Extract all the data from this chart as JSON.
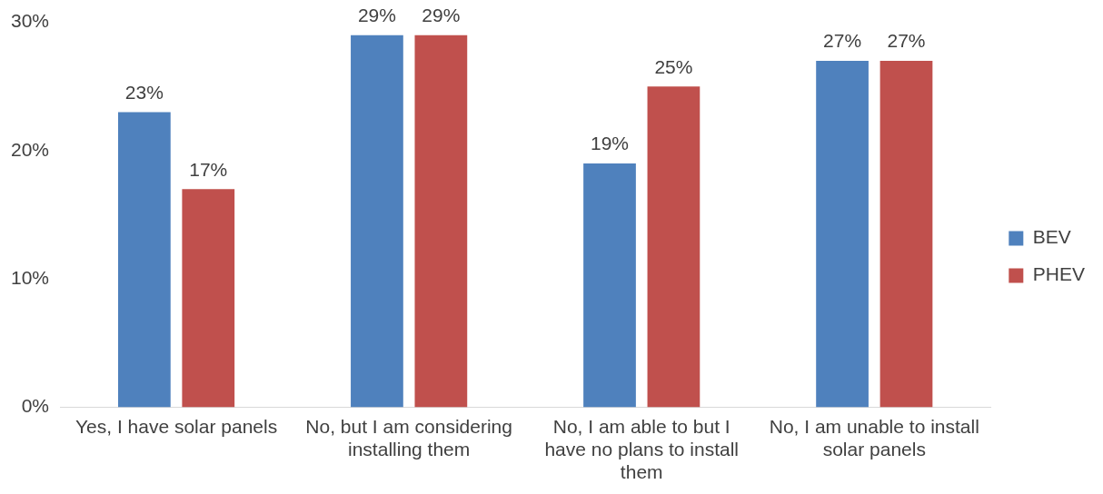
{
  "chart_data": {
    "type": "bar",
    "categories": [
      "Yes, I have solar panels",
      "No, but I am considering installing them",
      "No, I am able to but I have no plans to install them",
      "No, I am unable to install solar panels"
    ],
    "series": [
      {
        "name": "BEV",
        "color": "#4f81bd",
        "values": [
          23,
          29,
          19,
          27
        ],
        "value_labels": [
          "23%",
          "29%",
          "19%",
          "27%"
        ]
      },
      {
        "name": "PHEV",
        "color": "#c0504d",
        "values": [
          17,
          29,
          25,
          27
        ],
        "value_labels": [
          "17%",
          "29%",
          "25%",
          "27%"
        ]
      }
    ],
    "ylim": [
      0,
      30
    ],
    "yticks": [
      {
        "value": 0,
        "label": "0%"
      },
      {
        "value": 10,
        "label": "10%"
      },
      {
        "value": 20,
        "label": "20%"
      },
      {
        "value": 30,
        "label": "30%"
      }
    ],
    "grid": false,
    "legend": "right"
  }
}
